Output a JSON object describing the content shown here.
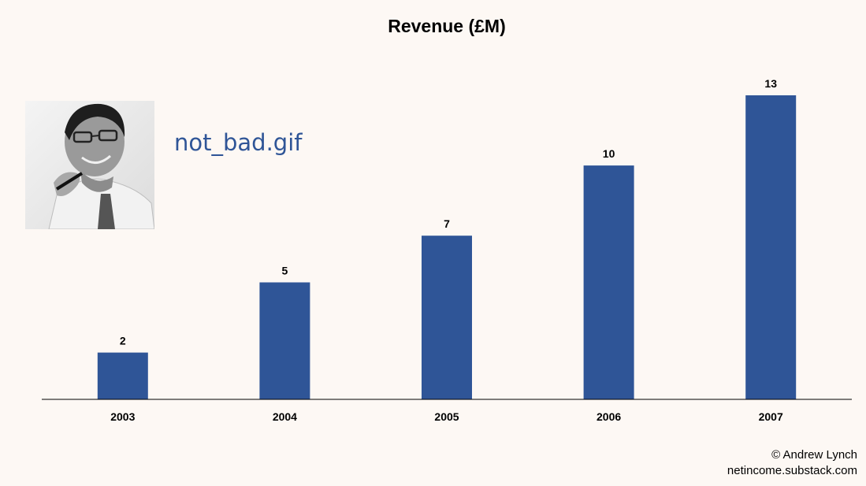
{
  "chart_data": {
    "type": "bar",
    "title": "Revenue (£M)",
    "categories": [
      "2003",
      "2004",
      "2005",
      "2006",
      "2007"
    ],
    "values": [
      2,
      5,
      7,
      10,
      13
    ],
    "data_labels": [
      "2",
      "5",
      "7",
      "10",
      "13"
    ],
    "xlabel": "",
    "ylabel": "",
    "ylim": [
      0,
      13
    ],
    "grid": false,
    "legend": "none",
    "bar_color": "#2f5597"
  },
  "photo": {
    "caption": "not_bad.gif"
  },
  "credit": {
    "author": "© Andrew Lynch",
    "site": "netincome.substack.com"
  }
}
